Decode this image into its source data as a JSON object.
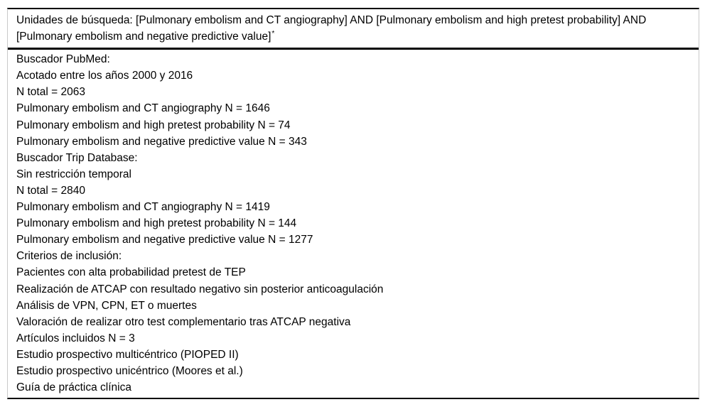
{
  "colors": {
    "text": "#000000",
    "rule_black": "#000000",
    "frame_gray": "#c9c9c9",
    "background": "#ffffff"
  },
  "table": {
    "header": {
      "line1": "Unidades de búsqueda: [Pulmonary embolism and CT angiography] AND [Pulmonary embolism and high pretest probability] AND",
      "line2": "[Pulmonary embolism and negative predictive value]",
      "footnote_marker": "*"
    },
    "body_lines": [
      "Buscador PubMed:",
      "Acotado entre los años 2000 y 2016",
      "N total = 2063",
      "Pulmonary embolism and CT angiography N = 1646",
      "Pulmonary embolism and high pretest probability N = 74",
      "Pulmonary embolism and negative predictive value N = 343",
      "Buscador Trip Database:",
      "Sin restricción temporal",
      "N total = 2840",
      "Pulmonary embolism and CT angiography N = 1419",
      "Pulmonary embolism and high pretest probability N = 144",
      "Pulmonary embolism and negative predictive value N = 1277",
      "Criterios de inclusión:",
      "Pacientes con alta probabilidad pretest de TEP",
      "Realización de ATCAP con resultado negativo sin posterior anticoagulación",
      "Análisis de VPN, CPN, ET o muertes",
      "Valoración de realizar otro test complementario tras ATCAP negativa",
      "Artículos incluidos N = 3",
      "Estudio prospectivo multicéntrico (PIOPED II)",
      "Estudio prospectivo unicéntrico (Moores et al.)",
      "Guía de práctica clínica"
    ]
  }
}
